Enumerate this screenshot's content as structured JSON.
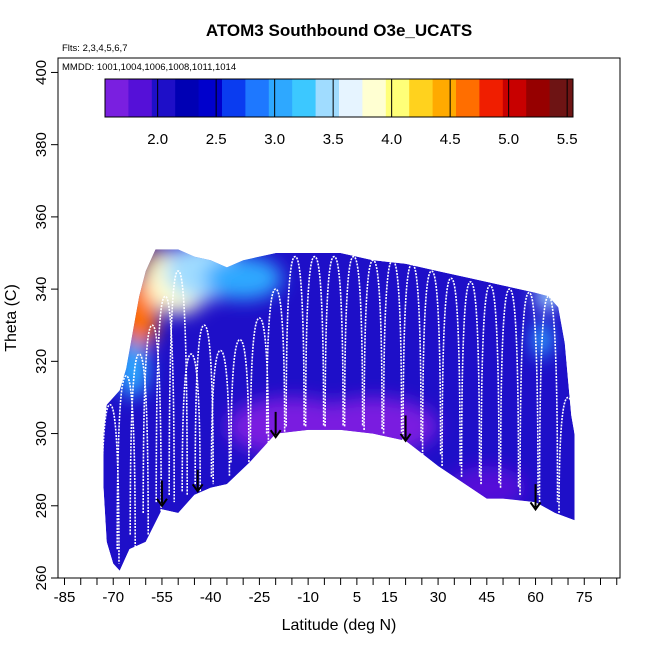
{
  "chart_data": {
    "type": "scatter",
    "title": "ATOM3 Southbound O3e_UCATS",
    "flights_text": "Flts: 2,3,4,5,6,7",
    "mmdd_text": "MMDD: 1001,1004,1006,1008,1011,1014",
    "xlabel": "Latitude (deg N)",
    "ylabel": "Theta (C)",
    "xlim": [
      -87,
      86
    ],
    "ylim": [
      260,
      404
    ],
    "x_ticks": [
      -85,
      -70,
      -55,
      -40,
      -25,
      -10,
      5,
      15,
      30,
      45,
      60,
      75
    ],
    "x_minor_ticks": [
      -80,
      -75,
      -65,
      -60,
      -50,
      -45,
      -35,
      -30,
      -20,
      -15,
      -5,
      0,
      10,
      20,
      25,
      35,
      40,
      50,
      55,
      65,
      70,
      80,
      85
    ],
    "y_ticks": [
      260,
      280,
      300,
      320,
      340,
      360,
      380,
      400
    ],
    "colorbar": {
      "min": 1.55,
      "max": 5.55,
      "ticks": [
        2.0,
        2.5,
        3.0,
        3.5,
        4.0,
        4.5,
        5.0,
        5.5
      ],
      "colors": [
        "#7a1fe0",
        "#5510d8",
        "#1e0fc8",
        "#0000b4",
        "#0000cc",
        "#0a3cf0",
        "#1e78ff",
        "#2ea8ff",
        "#3cc8ff",
        "#a0dcff",
        "#e6f4ff",
        "#ffffd2",
        "#ffff78",
        "#ffd21e",
        "#ffaa00",
        "#ff6e00",
        "#f01e00",
        "#c80000",
        "#960000",
        "#6e1414"
      ]
    },
    "field": {
      "top_boundary": [
        [
          -72,
          308
        ],
        [
          -68,
          312
        ],
        [
          -66,
          318
        ],
        [
          -64,
          328
        ],
        [
          -62,
          338
        ],
        [
          -60,
          345
        ],
        [
          -57,
          351
        ],
        [
          -50,
          351
        ],
        [
          -45,
          349
        ],
        [
          -40,
          348
        ],
        [
          -35,
          346
        ],
        [
          -30,
          348
        ],
        [
          -20,
          350
        ],
        [
          -10,
          350
        ],
        [
          0,
          350
        ],
        [
          10,
          348
        ],
        [
          20,
          347
        ],
        [
          30,
          345
        ],
        [
          40,
          343
        ],
        [
          50,
          341
        ],
        [
          55,
          340
        ],
        [
          60,
          339
        ],
        [
          64,
          338
        ],
        [
          67,
          335
        ],
        [
          69,
          325
        ],
        [
          70,
          315
        ],
        [
          71,
          305
        ],
        [
          72,
          300
        ]
      ],
      "bottom_boundary": [
        [
          72,
          276
        ],
        [
          66,
          278
        ],
        [
          60,
          281
        ],
        [
          50,
          282
        ],
        [
          45,
          282
        ],
        [
          40,
          285
        ],
        [
          30,
          291
        ],
        [
          20,
          298
        ],
        [
          10,
          300
        ],
        [
          0,
          301
        ],
        [
          -10,
          301
        ],
        [
          -20,
          300
        ],
        [
          -28,
          292
        ],
        [
          -35,
          286
        ],
        [
          -40,
          285
        ],
        [
          -45,
          283
        ],
        [
          -50,
          278
        ],
        [
          -55,
          279
        ],
        [
          -60,
          270
        ],
        [
          -65,
          268
        ],
        [
          -68,
          262
        ],
        [
          -70,
          264
        ],
        [
          -72,
          270
        ],
        [
          -73,
          285
        ],
        [
          -73,
          300
        ]
      ],
      "hotspots": [
        {
          "lat": -57,
          "theta": 346,
          "value": 5.3,
          "rx": 6,
          "ry": 6
        },
        {
          "lat": -62,
          "theta": 333,
          "value": 4.6,
          "rx": 6,
          "ry": 10
        },
        {
          "lat": -50,
          "theta": 342,
          "value": 3.9,
          "rx": 10,
          "ry": 9
        },
        {
          "lat": -42,
          "theta": 345,
          "value": 3.4,
          "rx": 12,
          "ry": 8
        },
        {
          "lat": -30,
          "theta": 343,
          "value": 3.0,
          "rx": 12,
          "ry": 6
        },
        {
          "lat": -64,
          "theta": 318,
          "value": 3.1,
          "rx": 5,
          "ry": 8
        },
        {
          "lat": 64,
          "theta": 338,
          "value": 3.5,
          "rx": 4,
          "ry": 4
        },
        {
          "lat": 62,
          "theta": 326,
          "value": 3.0,
          "rx": 3,
          "ry": 5
        },
        {
          "lat": -15,
          "theta": 302,
          "value": 1.7,
          "rx": 20,
          "ry": 8
        },
        {
          "lat": 10,
          "theta": 302,
          "value": 1.75,
          "rx": 20,
          "ry": 8
        },
        {
          "lat": 45,
          "theta": 285,
          "value": 1.9,
          "rx": 12,
          "ry": 6
        }
      ],
      "base_value": 2.05
    },
    "profiles": [
      {
        "lat": -71,
        "theta_top": 308,
        "theta_bottom": 264
      },
      {
        "lat": -66,
        "theta_top": 316,
        "theta_bottom": 268
      },
      {
        "lat": -62,
        "theta_top": 322,
        "theta_bottom": 272
      },
      {
        "lat": -58,
        "theta_top": 330,
        "theta_bottom": 278
      },
      {
        "lat": -54,
        "theta_top": 338,
        "theta_bottom": 281
      },
      {
        "lat": -50,
        "theta_top": 345,
        "theta_bottom": 283
      },
      {
        "lat": -46,
        "theta_top": 322,
        "theta_bottom": 284
      },
      {
        "lat": -42,
        "theta_top": 330,
        "theta_bottom": 286
      },
      {
        "lat": -37,
        "theta_top": 323,
        "theta_bottom": 288
      },
      {
        "lat": -31,
        "theta_top": 326,
        "theta_bottom": 292
      },
      {
        "lat": -25,
        "theta_top": 332,
        "theta_bottom": 296
      },
      {
        "lat": -20,
        "theta_top": 340,
        "theta_bottom": 300
      },
      {
        "lat": -14,
        "theta_top": 349,
        "theta_bottom": 302
      },
      {
        "lat": -8,
        "theta_top": 349,
        "theta_bottom": 302
      },
      {
        "lat": -2,
        "theta_top": 349,
        "theta_bottom": 302
      },
      {
        "lat": 4,
        "theta_top": 349,
        "theta_bottom": 302
      },
      {
        "lat": 10,
        "theta_top": 348,
        "theta_bottom": 301
      },
      {
        "lat": 16,
        "theta_top": 348,
        "theta_bottom": 300
      },
      {
        "lat": 22,
        "theta_top": 347,
        "theta_bottom": 298
      },
      {
        "lat": 28,
        "theta_top": 345,
        "theta_bottom": 294
      },
      {
        "lat": 34,
        "theta_top": 343,
        "theta_bottom": 291
      },
      {
        "lat": 40,
        "theta_top": 342,
        "theta_bottom": 288
      },
      {
        "lat": 46,
        "theta_top": 341,
        "theta_bottom": 286
      },
      {
        "lat": 52,
        "theta_top": 340,
        "theta_bottom": 285
      },
      {
        "lat": 58,
        "theta_top": 339,
        "theta_bottom": 283
      },
      {
        "lat": 64,
        "theta_top": 338,
        "theta_bottom": 281
      },
      {
        "lat": 70,
        "theta_top": 310,
        "theta_bottom": 278
      }
    ],
    "arrows": [
      {
        "lat": -55,
        "theta_top": 287,
        "theta_bottom": 280
      },
      {
        "lat": -44,
        "theta_top": 290,
        "theta_bottom": 284
      },
      {
        "lat": -20,
        "theta_top": 306,
        "theta_bottom": 299
      },
      {
        "lat": 20,
        "theta_top": 305,
        "theta_bottom": 298
      },
      {
        "lat": 60,
        "theta_top": 286,
        "theta_bottom": 279
      }
    ]
  }
}
